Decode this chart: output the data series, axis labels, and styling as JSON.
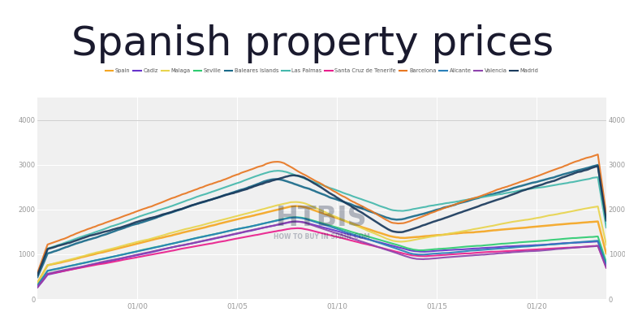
{
  "title": "Spanish property prices",
  "title_fontsize": 36,
  "title_color": "#1a1a2e",
  "background_color": "#ffffff",
  "plot_background": "#f0f0f0",
  "watermark": "HTBIS",
  "watermark_sub": "HOW TO BUY IN SPAIN.COM",
  "ylim": [
    0,
    4500
  ],
  "yticks": [
    0,
    1000,
    2000,
    3000,
    4000
  ],
  "x_tick_years": [
    2000,
    2005,
    2010,
    2015,
    2020
  ],
  "series": {
    "Spain": {
      "color": "#f5a623",
      "lw": 1.8
    },
    "Cadiz": {
      "color": "#6633cc",
      "lw": 1.5
    },
    "Malaga": {
      "color": "#e8d44d",
      "lw": 1.5
    },
    "Seville": {
      "color": "#2ecc71",
      "lw": 1.5
    },
    "Baleares Islands": {
      "color": "#1a6b8a",
      "lw": 1.8
    },
    "Las Palmas": {
      "color": "#45b8ac",
      "lw": 1.5
    },
    "Santa Cruz de Tenerife": {
      "color": "#e91e8c",
      "lw": 1.5
    },
    "Barcelona": {
      "color": "#e87722",
      "lw": 1.5
    },
    "Alicante": {
      "color": "#2980b9",
      "lw": 1.5
    },
    "Valencia": {
      "color": "#8e44ad",
      "lw": 1.5
    },
    "Madrid": {
      "color": "#1a3a5c",
      "lw": 1.8
    }
  }
}
